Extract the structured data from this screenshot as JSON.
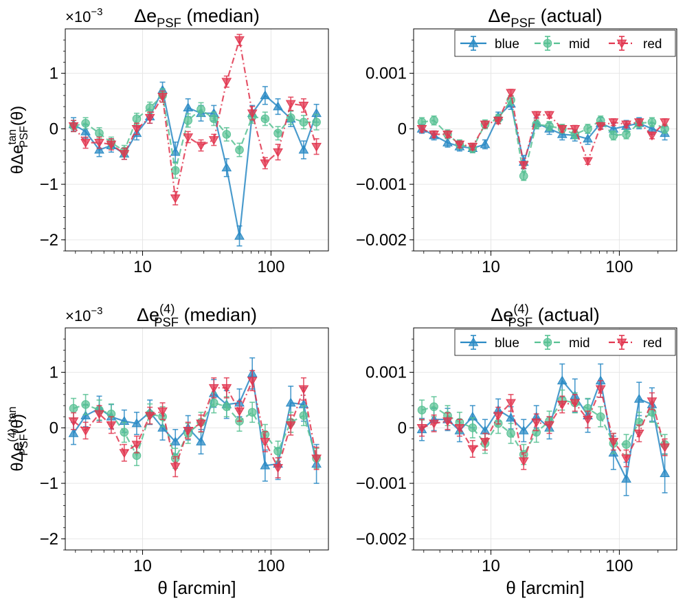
{
  "figure": {
    "x_axis_label": "θ [arcmin]",
    "series_styles": [
      {
        "key": "blue",
        "label": "blue",
        "color": "#2a8ac4",
        "marker": "triangle-up",
        "dash": "solid"
      },
      {
        "key": "mid",
        "label": "mid",
        "color": "#57c193",
        "marker": "circle",
        "dash": "dashed"
      },
      {
        "key": "red",
        "label": "red",
        "color": "#e1364f",
        "marker": "triangle-down",
        "dash": "dashdot"
      }
    ]
  },
  "chart_data": [
    {
      "type": "line",
      "id": "p1",
      "title": {
        "pre": "Δe",
        "sub": "PSF",
        "post": " (median)"
      },
      "offset_label": {
        "base": "×10",
        "exp": "−3"
      },
      "ylabel": {
        "pre": "θΔe",
        "sup": "tan",
        "sub": "PSF",
        "post": "(θ)"
      },
      "xlabel": "",
      "xscale": "log",
      "xlim": [
        2.5,
        280
      ],
      "ylim": [
        -2.2,
        1.8
      ],
      "yticks": [
        -2,
        -1,
        0,
        1
      ],
      "ytick_labels": [
        "−2",
        "−1",
        "0",
        "1"
      ],
      "xticks": [
        10,
        100
      ],
      "xtick_labels": [
        "10",
        "100"
      ],
      "legend": null,
      "x": [
        2.9,
        3.6,
        4.6,
        5.7,
        7.2,
        9.0,
        11.4,
        14.3,
        18.0,
        22.6,
        28.5,
        35.9,
        45.1,
        56.8,
        71.5,
        90.0,
        113.3,
        142.6,
        179.6,
        226.0
      ],
      "series": [
        {
          "name": "blue",
          "values": [
            0.08,
            -0.05,
            -0.38,
            -0.3,
            -0.45,
            -0.08,
            0.22,
            0.7,
            -0.42,
            0.38,
            0.28,
            0.28,
            -0.7,
            -1.93,
            0.28,
            0.6,
            0.4,
            0.18,
            -0.38,
            0.28
          ],
          "errors": [
            0.12,
            0.12,
            0.12,
            0.12,
            0.1,
            0.12,
            0.12,
            0.14,
            0.18,
            0.16,
            0.14,
            0.14,
            0.16,
            0.18,
            0.14,
            0.16,
            0.14,
            0.14,
            0.16,
            0.16
          ]
        },
        {
          "name": "mid",
          "values": [
            0.05,
            0.1,
            -0.08,
            -0.25,
            -0.4,
            0.18,
            0.38,
            0.6,
            -0.75,
            0.15,
            0.35,
            0.18,
            -0.1,
            -0.38,
            0.22,
            0.18,
            -0.08,
            0.2,
            0.12,
            0.12
          ],
          "errors": [
            0.1,
            0.1,
            0.1,
            0.1,
            0.1,
            0.1,
            0.1,
            0.12,
            0.14,
            0.12,
            0.12,
            0.12,
            0.12,
            0.12,
            0.12,
            0.12,
            0.12,
            0.12,
            0.12,
            0.14
          ]
        },
        {
          "name": "red",
          "values": [
            0.05,
            -0.25,
            -0.25,
            -0.28,
            -0.45,
            0.0,
            0.2,
            0.58,
            -1.25,
            -0.15,
            -0.3,
            -0.2,
            0.85,
            1.6,
            0.28,
            -0.62,
            -0.42,
            0.45,
            0.42,
            -0.32
          ],
          "errors": [
            0.1,
            0.1,
            0.1,
            0.1,
            0.1,
            0.1,
            0.1,
            0.1,
            0.12,
            0.1,
            0.1,
            0.1,
            0.1,
            0.1,
            0.12,
            0.1,
            0.14,
            0.12,
            0.12,
            0.14
          ]
        }
      ]
    },
    {
      "type": "line",
      "id": "p2",
      "title": {
        "pre": "Δe",
        "sub": "PSF",
        "post": " (actual)"
      },
      "offset_label": null,
      "ylabel": null,
      "xlabel": "",
      "xscale": "log",
      "xlim": [
        2.5,
        280
      ],
      "ylim": [
        -0.0022,
        0.0018
      ],
      "yticks": [
        -0.002,
        -0.001,
        0,
        0.001
      ],
      "ytick_labels": [
        "−0.002",
        "−0.001",
        "0",
        "0.001"
      ],
      "xticks": [
        10,
        100
      ],
      "xtick_labels": [
        "10",
        "100"
      ],
      "legend": "top-right",
      "x": [
        2.9,
        3.6,
        4.6,
        5.7,
        7.2,
        9.0,
        11.4,
        14.3,
        18.0,
        22.6,
        28.5,
        35.9,
        45.1,
        56.8,
        71.5,
        90.0,
        113.3,
        142.6,
        179.6,
        226.0
      ],
      "series": [
        {
          "name": "blue",
          "values": [
            0.0,
            -0.00012,
            -0.00025,
            -0.00032,
            -0.00035,
            -0.00028,
            0.00022,
            0.00045,
            -0.0006,
            0.0001,
            0.0,
            -0.0001,
            -0.00012,
            -0.00018,
            0.0001,
            0.0,
            5e-05,
            0.0001,
            0.0,
            -8e-05
          ],
          "errors": [
            8e-05,
            8e-05,
            8e-05,
            8e-05,
            8e-05,
            8e-05,
            8e-05,
            0.0001,
            0.00012,
            0.0001,
            0.0001,
            0.0001,
            0.0001,
            0.0001,
            0.0001,
            0.0001,
            0.0001,
            0.0001,
            0.0001,
            0.00012
          ]
        },
        {
          "name": "mid",
          "values": [
            0.00012,
            0.00015,
            -0.0001,
            -0.00028,
            -0.00035,
            8e-05,
            0.00018,
            0.00052,
            -0.00085,
            8e-05,
            5e-05,
            0.0,
            -0.0001,
            0.0,
            0.00015,
            -0.00012,
            -0.0001,
            0.0001,
            0.00012,
            0.0
          ],
          "errors": [
            8e-05,
            8e-05,
            8e-05,
            8e-05,
            8e-05,
            8e-05,
            8e-05,
            8e-05,
            8e-05,
            8e-05,
            8e-05,
            8e-05,
            8e-05,
            8e-05,
            8e-05,
            8e-05,
            8e-05,
            8e-05,
            8e-05,
            8e-05
          ]
        },
        {
          "name": "red",
          "values": [
            0.0,
            -0.0001,
            -0.0001,
            -0.00028,
            -0.00032,
            8e-05,
            0.00015,
            0.00065,
            -0.00065,
            0.00025,
            0.00025,
            0.0,
            0.0,
            -0.00058,
            5e-05,
            0.00012,
            8e-05,
            0.00012,
            -0.00012,
            0.00012
          ],
          "errors": [
            6e-05,
            6e-05,
            6e-05,
            6e-05,
            6e-05,
            6e-05,
            6e-05,
            6e-05,
            6e-05,
            6e-05,
            6e-05,
            6e-05,
            6e-05,
            6e-05,
            6e-05,
            6e-05,
            6e-05,
            6e-05,
            6e-05,
            6e-05
          ]
        }
      ]
    },
    {
      "type": "line",
      "id": "p3",
      "title": {
        "pre": "Δe",
        "sup": "(4)",
        "sub": "PSF",
        "post": " (median)"
      },
      "offset_label": {
        "base": "×10",
        "exp": "−3"
      },
      "ylabel": {
        "pre": "θΔe",
        "sup": "(4), tan",
        "sub": "PSF",
        "post": "(θ)"
      },
      "xlabel": "θ [arcmin]",
      "xscale": "log",
      "xlim": [
        2.5,
        280
      ],
      "ylim": [
        -2.2,
        1.8
      ],
      "yticks": [
        -2,
        -1,
        0,
        1
      ],
      "ytick_labels": [
        "−2",
        "−1",
        "0",
        "1"
      ],
      "xticks": [
        10,
        100
      ],
      "xtick_labels": [
        "10",
        "100"
      ],
      "legend": null,
      "x": [
        2.9,
        3.6,
        4.6,
        5.7,
        7.2,
        9.0,
        11.4,
        14.3,
        18.0,
        22.6,
        28.5,
        35.9,
        45.1,
        56.8,
        71.5,
        90.0,
        113.3,
        142.6,
        179.6,
        226.0
      ],
      "series": [
        {
          "name": "blue",
          "values": [
            -0.1,
            0.22,
            0.35,
            0.2,
            0.12,
            0.08,
            0.28,
            0.0,
            -0.25,
            0.0,
            -0.25,
            0.62,
            0.42,
            0.45,
            0.98,
            -0.68,
            -0.65,
            0.45,
            0.42,
            -0.65
          ],
          "errors": [
            0.2,
            0.2,
            0.22,
            0.22,
            0.2,
            0.2,
            0.22,
            0.22,
            0.22,
            0.22,
            0.22,
            0.25,
            0.25,
            0.25,
            0.28,
            0.28,
            0.28,
            0.3,
            0.3,
            0.35
          ]
        },
        {
          "name": "mid",
          "values": [
            0.35,
            0.42,
            0.32,
            0.25,
            -0.08,
            -0.5,
            0.25,
            0.2,
            -0.55,
            -0.1,
            0.1,
            0.45,
            0.38,
            0.12,
            0.28,
            -0.12,
            -0.42,
            0.1,
            0.22,
            -0.55
          ],
          "errors": [
            0.18,
            0.18,
            0.18,
            0.18,
            0.18,
            0.18,
            0.18,
            0.18,
            0.18,
            0.18,
            0.18,
            0.18,
            0.18,
            0.18,
            0.18,
            0.18,
            0.18,
            0.18,
            0.18,
            0.18
          ]
        },
        {
          "name": "red",
          "values": [
            0.12,
            -0.05,
            0.25,
            0.05,
            -0.45,
            -0.3,
            0.22,
            0.3,
            -0.7,
            -0.05,
            0.08,
            0.72,
            0.72,
            0.3,
            0.85,
            -0.25,
            -0.72,
            0.05,
            0.7,
            -0.55
          ],
          "errors": [
            0.15,
            0.15,
            0.15,
            0.15,
            0.15,
            0.15,
            0.15,
            0.15,
            0.18,
            0.15,
            0.15,
            0.18,
            0.18,
            0.18,
            0.18,
            0.18,
            0.18,
            0.18,
            0.2,
            0.2
          ]
        }
      ]
    },
    {
      "type": "line",
      "id": "p4",
      "title": {
        "pre": "Δe",
        "sup": "(4)",
        "sub": "PSF",
        "post": " (actual)"
      },
      "offset_label": null,
      "ylabel": null,
      "xlabel": "θ [arcmin]",
      "xscale": "log",
      "xlim": [
        2.5,
        280
      ],
      "ylim": [
        -0.0022,
        0.0018
      ],
      "yticks": [
        -0.002,
        -0.001,
        0,
        0.001
      ],
      "ytick_labels": [
        "−0.002",
        "−0.001",
        "0",
        "0.001"
      ],
      "xticks": [
        10,
        100
      ],
      "xtick_labels": [
        "10",
        "100"
      ],
      "legend": "top-right",
      "x": [
        2.9,
        3.6,
        4.6,
        5.7,
        7.2,
        9.0,
        11.4,
        14.3,
        18.0,
        22.6,
        28.5,
        35.9,
        45.1,
        56.8,
        71.5,
        90.0,
        113.3,
        142.6,
        179.6,
        226.0
      ],
      "series": [
        {
          "name": "blue",
          "values": [
            -3e-05,
            0.00015,
            0.00015,
            -5e-05,
            0.0002,
            -5e-05,
            0.00032,
            0.00018,
            -5e-05,
            0.0002,
            0.0,
            0.00085,
            0.00058,
            0.00022,
            0.00085,
            -0.00045,
            -0.00092,
            0.00052,
            0.00042,
            -0.00082
          ],
          "errors": [
            0.0002,
            0.0002,
            0.0002,
            0.0002,
            0.0002,
            0.0002,
            0.0002,
            0.0002,
            0.0002,
            0.0002,
            0.0002,
            0.0003,
            0.0003,
            0.0003,
            0.0003,
            0.0003,
            0.0003,
            0.0003,
            0.0003,
            0.00035
          ]
        },
        {
          "name": "mid",
          "values": [
            0.00032,
            0.00038,
            0.00022,
            0.0001,
            0.0,
            -0.00028,
            8e-05,
            -0.0001,
            -0.00048,
            -8e-05,
            0.00012,
            0.0005,
            0.00045,
            0.00035,
            0.0002,
            -0.00028,
            -0.0003,
            0.0001,
            0.00028,
            -0.0003
          ],
          "errors": [
            0.00018,
            0.00018,
            0.00018,
            0.00018,
            0.00018,
            0.00018,
            0.00018,
            0.00018,
            0.00018,
            0.00018,
            0.00018,
            0.00018,
            0.00018,
            0.00018,
            0.00018,
            0.00018,
            0.00018,
            0.00018,
            0.00018,
            0.00018
          ]
        },
        {
          "name": "red",
          "values": [
            0.0,
            8e-05,
            0.00012,
            0.0,
            -0.00038,
            -0.00025,
            0.00022,
            0.00045,
            -0.0006,
            0.0001,
            5e-05,
            0.00042,
            0.00045,
            0.00015,
            0.0007,
            -0.00025,
            -0.00055,
            -0.0001,
            0.00048,
            -0.00035
          ],
          "errors": [
            0.00015,
            0.00015,
            0.00015,
            0.00015,
            0.00015,
            0.00015,
            0.00015,
            0.00015,
            0.00015,
            0.00015,
            0.00015,
            0.00015,
            0.00015,
            0.00015,
            0.00015,
            0.00015,
            0.00015,
            0.00015,
            0.00015,
            0.00015
          ]
        }
      ]
    }
  ]
}
